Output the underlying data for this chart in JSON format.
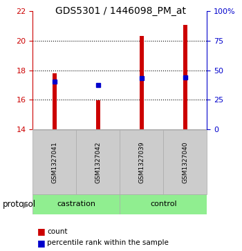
{
  "title": "GDS5301 / 1446098_PM_at",
  "samples": [
    "GSM1327041",
    "GSM1327042",
    "GSM1327039",
    "GSM1327040"
  ],
  "bar_bottom": 14.0,
  "bar_tops": [
    17.8,
    15.95,
    20.35,
    21.1
  ],
  "percentile_ranks": [
    17.25,
    17.0,
    17.45,
    17.5
  ],
  "ylim_left": [
    14,
    22
  ],
  "ylim_right": [
    0,
    100
  ],
  "yticks_left": [
    14,
    16,
    18,
    20,
    22
  ],
  "yticks_right": [
    0,
    25,
    50,
    75,
    100
  ],
  "left_tick_color": "#cc0000",
  "right_tick_color": "#0000cc",
  "bar_color": "#cc0000",
  "dot_color": "#0000cc",
  "sample_box_color": "#cccccc",
  "group_box_color": "#90ee90",
  "protocol_label": "protocol",
  "castration_label": "castration",
  "control_label": "control",
  "legend_count_label": "count",
  "legend_percentile_label": "percentile rank within the sample"
}
